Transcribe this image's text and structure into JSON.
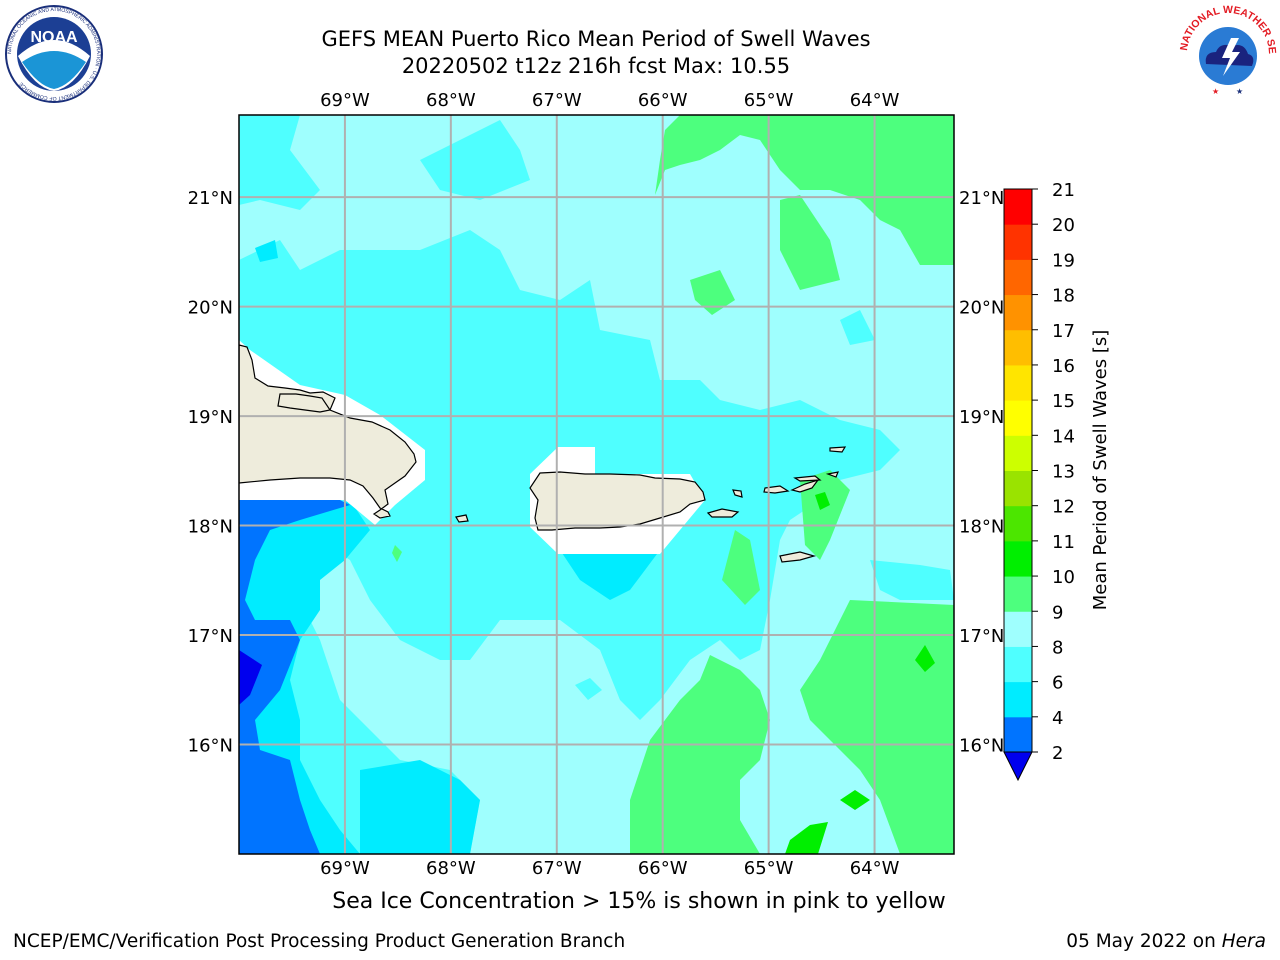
{
  "header": {
    "title_line1": "GEFS MEAN Puerto Rico Mean Period of Swell Waves",
    "title_line2": "20220502 t12z 216h fcst   Max: 10.55"
  },
  "logos": {
    "left": {
      "name": "noaa-logo",
      "text": "NOAA",
      "ring_text": "NATIONAL OCEANIC AND ATMOSPHERIC ADMINISTRATION · U.S. DEPARTMENT OF COMMERCE"
    },
    "right": {
      "name": "nws-logo",
      "ring_text": "NATIONAL WEATHER SERVICE"
    }
  },
  "map": {
    "lon_labels": [
      "69°W",
      "68°W",
      "67°W",
      "66°W",
      "65°W",
      "64°W"
    ],
    "lat_labels": [
      "21°N",
      "20°N",
      "19°N",
      "18°N",
      "17°N",
      "16°N"
    ],
    "lon_range": [
      -70.0,
      -63.25
    ],
    "lat_range": [
      15.0,
      21.75
    ],
    "gridlines": true,
    "ocean_color": "#9ffffe",
    "land_color": "#eeecdc"
  },
  "colorbar": {
    "label": "Mean Period of Swell Waves [s]",
    "levels": [
      2,
      4,
      6,
      8,
      9,
      10,
      11,
      12,
      13,
      14,
      15,
      16,
      17,
      18,
      19,
      20,
      21
    ],
    "tick_labels": [
      "2",
      "4",
      "6",
      "8",
      "9",
      "10",
      "11",
      "12",
      "13",
      "14",
      "15",
      "16",
      "17",
      "18",
      "19",
      "20",
      "21"
    ],
    "colors": [
      "#0074ff",
      "#00ecff",
      "#4fffff",
      "#9ffffe",
      "#4dff7e",
      "#00ef00",
      "#4ce600",
      "#9ae300",
      "#cdff00",
      "#ffff00",
      "#ffe500",
      "#ffbe00",
      "#ff9200",
      "#ff6600",
      "#ff3300",
      "#ff0000"
    ],
    "extend_low_color": "#0000ee"
  },
  "footer": {
    "note": "Sea Ice Concentration > 15% is shown in pink to yellow",
    "credit": "NCEP/EMC/Verification Post Processing Product Generation Branch",
    "date": "05 May 2022 on",
    "machine": "Hera"
  }
}
